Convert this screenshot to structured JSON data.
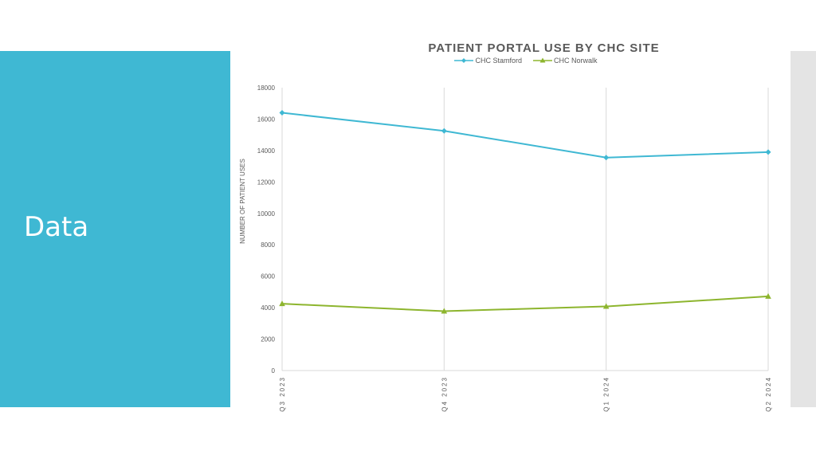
{
  "slide": {
    "title": "Data"
  },
  "chart_data": {
    "type": "line",
    "title": "PATIENT PORTAL USE BY CHC SITE",
    "xlabel": "",
    "ylabel": "NUMBER OF PATIENT USES",
    "categories": [
      "Q3 2023",
      "Q4 2023",
      "Q1 2024",
      "Q2 2024"
    ],
    "ylim": [
      0,
      18000
    ],
    "yticks": [
      0,
      2000,
      4000,
      6000,
      8000,
      10000,
      12000,
      14000,
      16000,
      18000
    ],
    "grid": "vertical",
    "legend_position": "top",
    "series": [
      {
        "name": "CHC Stamford",
        "color": "#3fb8d3",
        "marker": "diamond",
        "values": [
          16400,
          15250,
          13550,
          13900
        ]
      },
      {
        "name": "CHC Norwalk",
        "color": "#8db52e",
        "marker": "triangle",
        "values": [
          4250,
          3780,
          4080,
          4720
        ]
      }
    ]
  }
}
